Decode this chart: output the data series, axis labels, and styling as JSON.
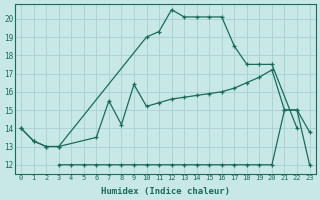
{
  "bg_color": "#c8e8e8",
  "grid_color": "#a8d0d0",
  "line_color": "#1a6b5a",
  "xlabel": "Humidex (Indice chaleur)",
  "xlim": [
    -0.5,
    23.5
  ],
  "ylim": [
    11.5,
    20.8
  ],
  "yticks": [
    12,
    13,
    14,
    15,
    16,
    17,
    18,
    19,
    20
  ],
  "xticks": [
    0,
    1,
    2,
    3,
    4,
    5,
    6,
    7,
    8,
    9,
    10,
    11,
    12,
    13,
    14,
    15,
    16,
    17,
    18,
    19,
    20,
    21,
    22,
    23
  ],
  "line1_x": [
    0,
    1,
    2,
    3,
    10,
    11,
    12,
    13,
    14,
    15,
    16,
    17,
    18,
    19,
    20,
    22
  ],
  "line1_y": [
    14.0,
    13.3,
    13.0,
    13.0,
    19.0,
    19.3,
    20.5,
    20.1,
    20.1,
    20.1,
    20.1,
    18.5,
    17.5,
    17.5,
    17.5,
    14.0
  ],
  "line2_x": [
    0,
    1,
    2,
    3,
    6,
    7,
    8,
    9,
    10,
    11,
    12,
    13,
    14,
    15,
    16,
    17,
    18,
    19,
    20,
    21,
    22,
    23
  ],
  "line2_y": [
    14.0,
    13.3,
    13.0,
    13.0,
    13.5,
    15.5,
    14.2,
    16.4,
    15.2,
    15.4,
    15.6,
    15.7,
    15.8,
    15.9,
    16.0,
    16.2,
    16.5,
    16.8,
    17.2,
    15.0,
    15.0,
    13.8
  ],
  "line3_x": [
    3,
    4,
    5,
    6,
    7,
    8,
    9,
    10,
    11,
    12,
    13,
    14,
    15,
    16,
    17,
    18,
    19,
    20,
    21,
    22,
    23
  ],
  "line3_y": [
    12.0,
    12.0,
    12.0,
    12.0,
    12.0,
    12.0,
    12.0,
    12.0,
    12.0,
    12.0,
    12.0,
    12.0,
    12.0,
    12.0,
    12.0,
    12.0,
    12.0,
    12.0,
    15.0,
    15.0,
    12.0
  ]
}
